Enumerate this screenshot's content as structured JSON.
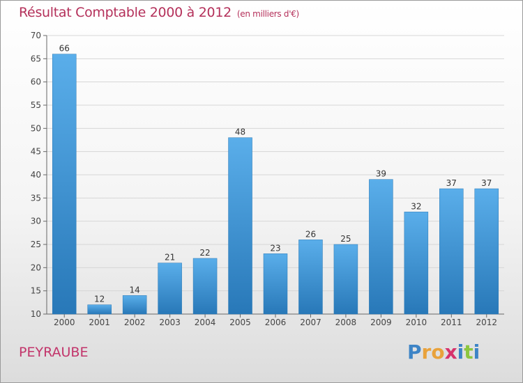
{
  "chart_data": {
    "type": "bar",
    "title": "Résultat Comptable 2000 à 2012",
    "subtitle": "(en milliers d'€)",
    "xlabel": "",
    "ylabel": "",
    "categories": [
      "2000",
      "2001",
      "2002",
      "2003",
      "2004",
      "2005",
      "2006",
      "2007",
      "2008",
      "2009",
      "2010",
      "2011",
      "2012"
    ],
    "values": [
      66,
      12,
      14,
      21,
      22,
      48,
      23,
      26,
      25,
      39,
      32,
      37,
      37
    ],
    "ylim": [
      10,
      70
    ],
    "yticks": [
      10,
      15,
      20,
      25,
      30,
      35,
      40,
      45,
      50,
      55,
      60,
      65,
      70
    ],
    "grid": true,
    "bar_color_top": "#5aaeea",
    "bar_color_bottom": "#2878b8",
    "title_color": "#b4305a"
  },
  "footer": {
    "commune": "PEYRAUBE",
    "logo_letters": [
      {
        "ch": "P",
        "color": "#3d84c6"
      },
      {
        "ch": "r",
        "color": "#e9a23b"
      },
      {
        "ch": "o",
        "color": "#e9a23b"
      },
      {
        "ch": "x",
        "color": "#d6336c"
      },
      {
        "ch": "i",
        "color": "#3d84c6"
      },
      {
        "ch": "t",
        "color": "#8cc63f"
      },
      {
        "ch": "i",
        "color": "#3d84c6"
      }
    ]
  }
}
